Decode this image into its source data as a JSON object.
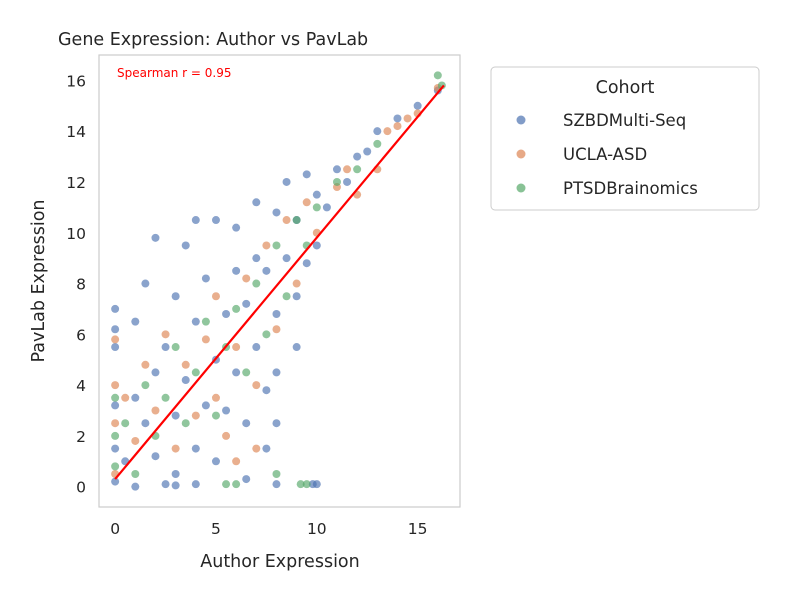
{
  "chart_data": {
    "type": "scatter",
    "title": "Gene Expression: Author vs PavLab",
    "xlabel": "Author Expression",
    "ylabel": "PavLab Expression",
    "xlim": [
      -0.8,
      17.1
    ],
    "ylim": [
      -0.8,
      17.0
    ],
    "x_ticks": [
      0,
      5,
      10,
      15
    ],
    "y_ticks": [
      0,
      2,
      4,
      6,
      8,
      10,
      12,
      14,
      16
    ],
    "grid": false,
    "annotation": {
      "text": "Spearman r = 0.95",
      "color": "#ff0000"
    },
    "fit_line": {
      "x": [
        0,
        16.3
      ],
      "y": [
        0.3,
        15.8
      ],
      "color": "#ff0000"
    },
    "legend": {
      "title": "Cohort",
      "placement": "outside-right-top"
    },
    "series": [
      {
        "name": "SZBDMulti-Seq",
        "color": "#4c72b0",
        "points": [
          [
            0,
            0.2
          ],
          [
            0,
            1.5
          ],
          [
            0,
            3.2
          ],
          [
            0,
            5.5
          ],
          [
            0,
            7.0
          ],
          [
            0,
            6.2
          ],
          [
            0.5,
            1.0
          ],
          [
            1,
            3.5
          ],
          [
            1,
            6.5
          ],
          [
            1.5,
            2.5
          ],
          [
            1.5,
            8.0
          ],
          [
            2,
            1.2
          ],
          [
            2,
            4.5
          ],
          [
            2,
            9.8
          ],
          [
            2.5,
            5.5
          ],
          [
            3,
            0.5
          ],
          [
            3,
            2.8
          ],
          [
            3,
            7.5
          ],
          [
            3.5,
            4.2
          ],
          [
            3.5,
            9.5
          ],
          [
            4,
            1.5
          ],
          [
            4,
            6.5
          ],
          [
            4,
            10.5
          ],
          [
            4.5,
            3.2
          ],
          [
            4.5,
            8.2
          ],
          [
            5,
            5.0
          ],
          [
            5,
            1.0
          ],
          [
            5,
            10.5
          ],
          [
            5.5,
            6.8
          ],
          [
            5.5,
            3.0
          ],
          [
            6,
            8.5
          ],
          [
            6,
            4.5
          ],
          [
            6,
            10.2
          ],
          [
            6.5,
            2.5
          ],
          [
            6.5,
            7.2
          ],
          [
            7,
            9.0
          ],
          [
            7,
            5.5
          ],
          [
            7,
            11.2
          ],
          [
            7.5,
            3.8
          ],
          [
            7.5,
            8.5
          ],
          [
            8,
            10.8
          ],
          [
            8,
            6.8
          ],
          [
            8,
            4.5
          ],
          [
            8.5,
            12.0
          ],
          [
            8.5,
            9.0
          ],
          [
            9,
            10.5
          ],
          [
            9,
            7.5
          ],
          [
            9.5,
            12.3
          ],
          [
            9.5,
            8.8
          ],
          [
            10,
            11.5
          ],
          [
            10,
            9.5
          ],
          [
            10.5,
            11.0
          ],
          [
            11,
            12.5
          ],
          [
            11.5,
            12.0
          ],
          [
            12,
            13.0
          ],
          [
            12.5,
            13.2
          ],
          [
            13,
            14.0
          ],
          [
            14,
            14.5
          ],
          [
            15,
            15.0
          ],
          [
            16,
            15.6
          ],
          [
            10,
            0.1
          ],
          [
            9.8,
            0.1
          ],
          [
            8,
            0.1
          ],
          [
            2.5,
            0.1
          ],
          [
            4,
            0.1
          ],
          [
            1,
            0.0
          ],
          [
            3,
            0.05
          ],
          [
            6.5,
            0.3
          ],
          [
            7.5,
            1.5
          ],
          [
            8,
            2.5
          ],
          [
            9,
            5.5
          ]
        ]
      },
      {
        "name": "UCLA-ASD",
        "color": "#dd8452",
        "points": [
          [
            0,
            0.5
          ],
          [
            0,
            2.5
          ],
          [
            0,
            4.0
          ],
          [
            0,
            5.8
          ],
          [
            0.5,
            3.5
          ],
          [
            1,
            1.8
          ],
          [
            1.5,
            4.8
          ],
          [
            2,
            3.0
          ],
          [
            2.5,
            6.0
          ],
          [
            3,
            1.5
          ],
          [
            3.5,
            4.8
          ],
          [
            4,
            2.8
          ],
          [
            4.5,
            5.8
          ],
          [
            5,
            3.5
          ],
          [
            5,
            7.5
          ],
          [
            5.5,
            2.0
          ],
          [
            6,
            5.5
          ],
          [
            6.5,
            8.2
          ],
          [
            7,
            4.0
          ],
          [
            7.5,
            9.5
          ],
          [
            8,
            6.2
          ],
          [
            8.5,
            10.5
          ],
          [
            9,
            8.0
          ],
          [
            9.5,
            11.2
          ],
          [
            10,
            10.0
          ],
          [
            11,
            11.8
          ],
          [
            11.5,
            12.5
          ],
          [
            12,
            11.5
          ],
          [
            13,
            12.5
          ],
          [
            13.5,
            14.0
          ],
          [
            14,
            14.2
          ],
          [
            15,
            14.7
          ],
          [
            16,
            15.7
          ],
          [
            14.5,
            14.5
          ],
          [
            7,
            1.5
          ],
          [
            6,
            1.0
          ]
        ]
      },
      {
        "name": "PTSDBrainomics",
        "color": "#55a868",
        "points": [
          [
            0,
            0.8
          ],
          [
            0,
            2.0
          ],
          [
            0,
            3.5
          ],
          [
            0.5,
            2.5
          ],
          [
            1,
            0.5
          ],
          [
            1.5,
            4.0
          ],
          [
            2,
            2.0
          ],
          [
            2.5,
            3.5
          ],
          [
            3,
            5.5
          ],
          [
            3.5,
            2.5
          ],
          [
            4,
            4.5
          ],
          [
            4.5,
            6.5
          ],
          [
            5,
            2.8
          ],
          [
            5.5,
            5.5
          ],
          [
            6,
            7.0
          ],
          [
            6.5,
            4.5
          ],
          [
            7,
            8.0
          ],
          [
            7.5,
            6.0
          ],
          [
            8,
            9.5
          ],
          [
            8.5,
            7.5
          ],
          [
            9,
            10.5
          ],
          [
            9.5,
            9.5
          ],
          [
            10,
            11.0
          ],
          [
            11,
            12.0
          ],
          [
            12,
            12.5
          ],
          [
            13,
            13.5
          ],
          [
            16,
            16.2
          ],
          [
            16.2,
            15.8
          ],
          [
            5.5,
            0.1
          ],
          [
            9.2,
            0.1
          ],
          [
            9.5,
            0.1
          ],
          [
            6,
            0.1
          ],
          [
            8,
            0.5
          ]
        ]
      }
    ]
  }
}
